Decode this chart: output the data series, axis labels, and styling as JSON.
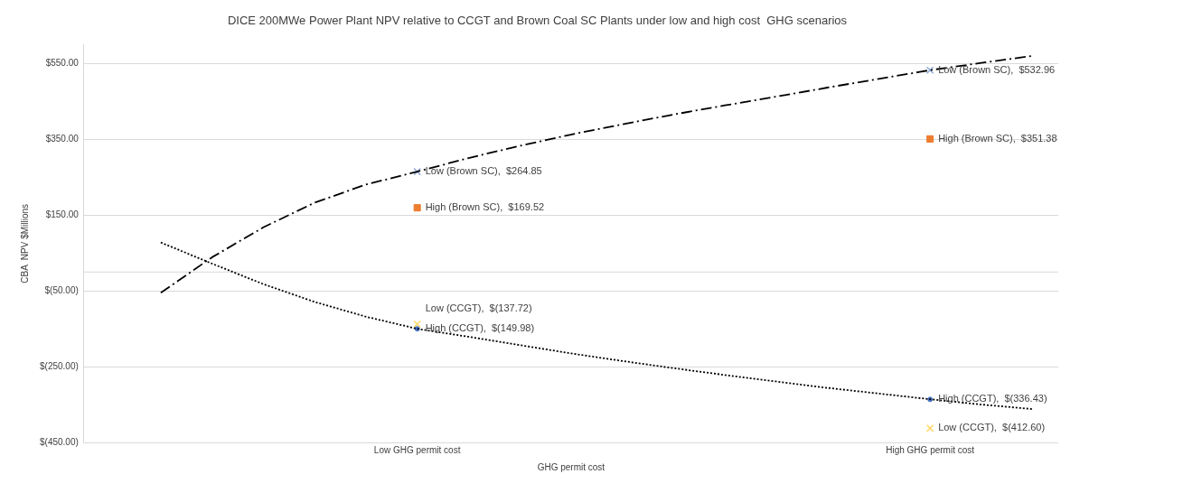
{
  "chart_data": {
    "type": "scatter",
    "title": "DICE 200MWe Power Plant NPV relative to CCGT and Brown Coal SC Plants under low and high cost  GHG scenarios",
    "xlabel": "GHG permit cost",
    "ylabel": "CBA  NPV $Millions",
    "categories": [
      null,
      null,
      null,
      null,
      null,
      null,
      "Low GHG permit cost",
      null,
      null,
      null,
      null,
      null,
      null,
      null,
      null,
      null,
      "High GHG permit cost",
      null,
      null
    ],
    "ylim": [
      -450,
      600
    ],
    "yticks": [
      {
        "value": -450,
        "label": "$(450.00)"
      },
      {
        "value": -250,
        "label": "$(250.00)"
      },
      {
        "value": -50,
        "label": "$(50.00)"
      },
      {
        "value": 150,
        "label": "$150.00"
      },
      {
        "value": 350,
        "label": "$350.00"
      },
      {
        "value": 550,
        "label": "$550.00"
      }
    ],
    "grid": "y",
    "legend": false,
    "ref_lines": [
      {
        "axis": "y",
        "value": 0,
        "color": "#d9d9d9"
      }
    ],
    "series": [
      {
        "type": "line",
        "color": "#000000",
        "marker": "none",
        "line_style": "dashed",
        "values": [
          null,
          -55,
          39,
          118,
          183,
          231,
          265,
          301,
          333,
          363,
          390,
          416,
          440,
          463,
          487,
          510,
          533,
          552,
          571
        ]
      },
      {
        "type": "line",
        "color": "#000000",
        "marker": "none",
        "line_style": "dotted",
        "values": [
          null,
          78,
          22,
          -32,
          -79,
          -118,
          -150,
          -171,
          -193,
          -215,
          -235,
          -254,
          -272,
          -289,
          -306,
          -321,
          -336,
          -350,
          -362
        ]
      },
      {
        "name": "Low (Brown SC)",
        "color": "#8faadc",
        "marker": "cross",
        "values": [
          null,
          null,
          null,
          null,
          null,
          null,
          264.85,
          null,
          null,
          null,
          null,
          null,
          null,
          null,
          null,
          null,
          532.96,
          null,
          null
        ],
        "value_labels": [
          null,
          null,
          null,
          null,
          null,
          null,
          ",  $264.85",
          null,
          null,
          null,
          null,
          null,
          null,
          null,
          null,
          null,
          ",  $532.96",
          null,
          null
        ]
      },
      {
        "name": "High (Brown SC)",
        "color": "#ed7d31",
        "marker": "square",
        "values": [
          null,
          null,
          null,
          null,
          null,
          null,
          169.52,
          null,
          null,
          null,
          null,
          null,
          null,
          null,
          null,
          null,
          351.38,
          null,
          null
        ],
        "value_labels": [
          null,
          null,
          null,
          null,
          null,
          null,
          ",  $169.52",
          null,
          null,
          null,
          null,
          null,
          null,
          null,
          null,
          null,
          ",  $351.38",
          null,
          null
        ]
      },
      {
        "name": "High (CCGT)",
        "color": "#4472c4",
        "marker": "circle",
        "values": [
          null,
          null,
          null,
          null,
          null,
          null,
          -149.98,
          null,
          null,
          null,
          null,
          null,
          null,
          null,
          null,
          null,
          -336.43,
          null,
          null
        ],
        "value_labels": [
          null,
          null,
          null,
          null,
          null,
          null,
          ",  $(149.98)",
          null,
          null,
          null,
          null,
          null,
          null,
          null,
          null,
          null,
          ",  $(336.43)",
          null,
          null
        ]
      },
      {
        "name": "Low (CCGT)",
        "color": "#ffd966",
        "marker": "cross",
        "values": [
          null,
          null,
          null,
          null,
          null,
          null,
          -137.72,
          null,
          null,
          null,
          null,
          null,
          null,
          null,
          null,
          null,
          -412.6,
          null,
          null
        ],
        "value_labels": [
          null,
          null,
          null,
          null,
          null,
          null,
          ",  $(137.72)",
          null,
          null,
          null,
          null,
          null,
          null,
          null,
          null,
          null,
          ",  $(412.60)",
          null,
          null
        ]
      }
    ]
  }
}
